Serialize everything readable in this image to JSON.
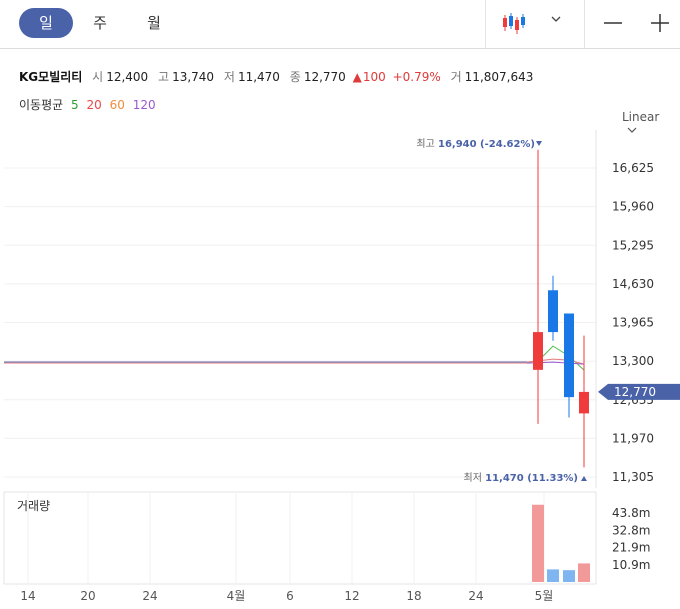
{
  "toolbar": {
    "tabs": [
      {
        "label": "일",
        "active": true
      },
      {
        "label": "주",
        "active": false
      },
      {
        "label": "월",
        "active": false
      }
    ],
    "chart_type_icon": "candlestick-icon",
    "dropdown_icon": "chevron-down-icon",
    "zoom_out_icon": "minus-icon",
    "zoom_in_icon": "plus-icon"
  },
  "quote": {
    "name": "KG모빌리티",
    "open_label": "시",
    "open": "12,400",
    "high_label": "고",
    "high": "13,740",
    "low_label": "저",
    "low": "11,470",
    "close_label": "종",
    "close": "12,770",
    "change_arrow": "▲",
    "change": "100",
    "change_pct": "+0.79%",
    "volume_label": "거",
    "volume": "11,807,643"
  },
  "moving_average": {
    "label": "이동평균",
    "periods": [
      {
        "value": "5",
        "color": "#2ca02c"
      },
      {
        "value": "20",
        "color": "#e84a4a"
      },
      {
        "value": "60",
        "color": "#f08c3a"
      },
      {
        "value": "120",
        "color": "#9b59d0"
      }
    ]
  },
  "scale": {
    "label": "Linear"
  },
  "colors": {
    "up": "#ef3b3b",
    "down": "#1a78e6",
    "accent": "#4a62a8",
    "price_tag": "#4a62a8"
  },
  "chart_data": {
    "type": "candlestick",
    "y_ticks": [
      "16,625",
      "15,960",
      "15,295",
      "14,630",
      "13,965",
      "13,300",
      "12,635",
      "11,970",
      "11,305"
    ],
    "y_tick_values": [
      16625,
      15960,
      15295,
      14630,
      13965,
      13300,
      12635,
      11970,
      11305
    ],
    "x_ticks": [
      "14",
      "20",
      "24",
      "4월",
      "6",
      "12",
      "18",
      "24",
      "5월"
    ],
    "high_annotation": {
      "label": "최고",
      "value": "16,940",
      "pct": "(-24.62%)",
      "price": 16940
    },
    "low_annotation": {
      "label": "최저",
      "value": "11,470",
      "pct": "(11.33%)",
      "price": 11470
    },
    "current_price_tag": "12,770",
    "current_price": 12770,
    "flat_price": 13300,
    "candles": [
      {
        "open": 13150,
        "high": 16940,
        "low": 12220,
        "close": 13800,
        "direction": "up"
      },
      {
        "open": 14520,
        "high": 14770,
        "low": 13650,
        "close": 13800,
        "direction": "down"
      },
      {
        "open": 14120,
        "high": 14120,
        "low": 12330,
        "close": 12680,
        "direction": "down"
      },
      {
        "open": 12400,
        "high": 13740,
        "low": 11470,
        "close": 12770,
        "direction": "up"
      }
    ],
    "volume": {
      "label": "거래량",
      "y_ticks": [
        "43.8m",
        "32.8m",
        "21.9m",
        "10.9m"
      ],
      "y_tick_values": [
        43.8,
        32.8,
        21.9,
        10.9
      ],
      "bars": [
        {
          "value": 49.0,
          "direction": "up"
        },
        {
          "value": 8.0,
          "direction": "down"
        },
        {
          "value": 7.5,
          "direction": "down"
        },
        {
          "value": 11.8,
          "direction": "up"
        }
      ]
    }
  }
}
